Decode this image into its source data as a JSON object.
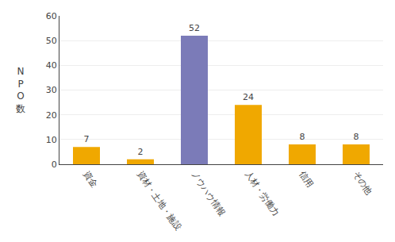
{
  "chart_data": {
    "type": "bar",
    "categories": [
      "資金",
      "資材・土地・施設",
      "ノウハウ情報",
      "人材・労働力",
      "信用",
      "その他"
    ],
    "values": [
      7,
      2,
      52,
      24,
      8,
      8
    ],
    "colors": [
      "#f0a800",
      "#f0a800",
      "#7b7bb8",
      "#f0a800",
      "#f0a800",
      "#f0a800"
    ],
    "ylabel": "N\nP\nO\n数",
    "ylim": [
      0,
      60
    ],
    "yticks": [
      0,
      10,
      20,
      30,
      40,
      50,
      60
    ],
    "grid": true,
    "data_labels": true
  }
}
